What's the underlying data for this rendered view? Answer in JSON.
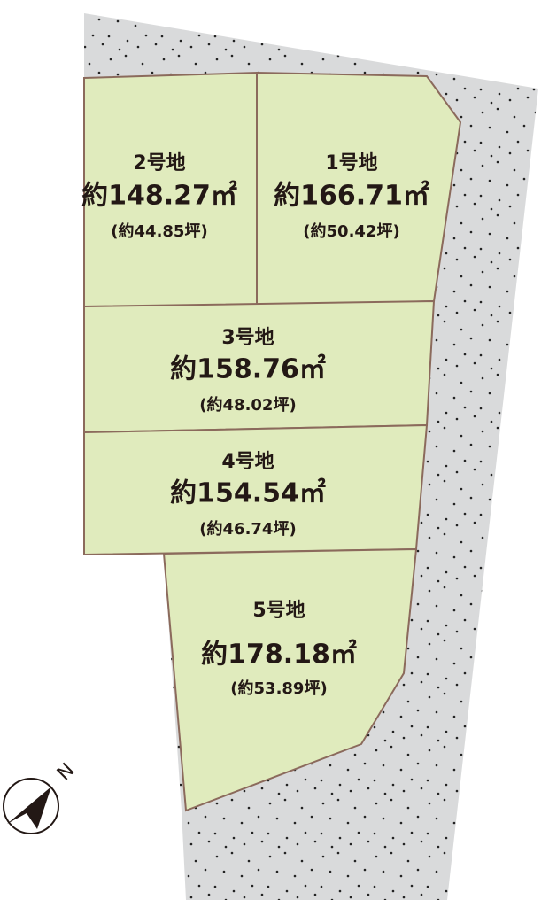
{
  "lots": [
    {
      "name": "2号地",
      "area": "約148.27㎡",
      "tsubo": "(約44.85坪)"
    },
    {
      "name": "1号地",
      "area": "約166.71㎡",
      "tsubo": "(約50.42坪)"
    },
    {
      "name": "3号地",
      "area": "約158.76㎡",
      "tsubo": "(約48.02坪)"
    },
    {
      "name": "4号地",
      "area": "約154.54㎡",
      "tsubo": "(約46.74坪)"
    },
    {
      "name": "5号地",
      "area": "約178.18㎡",
      "tsubo": "(約53.89坪)"
    }
  ],
  "compass": {
    "label": "N"
  }
}
